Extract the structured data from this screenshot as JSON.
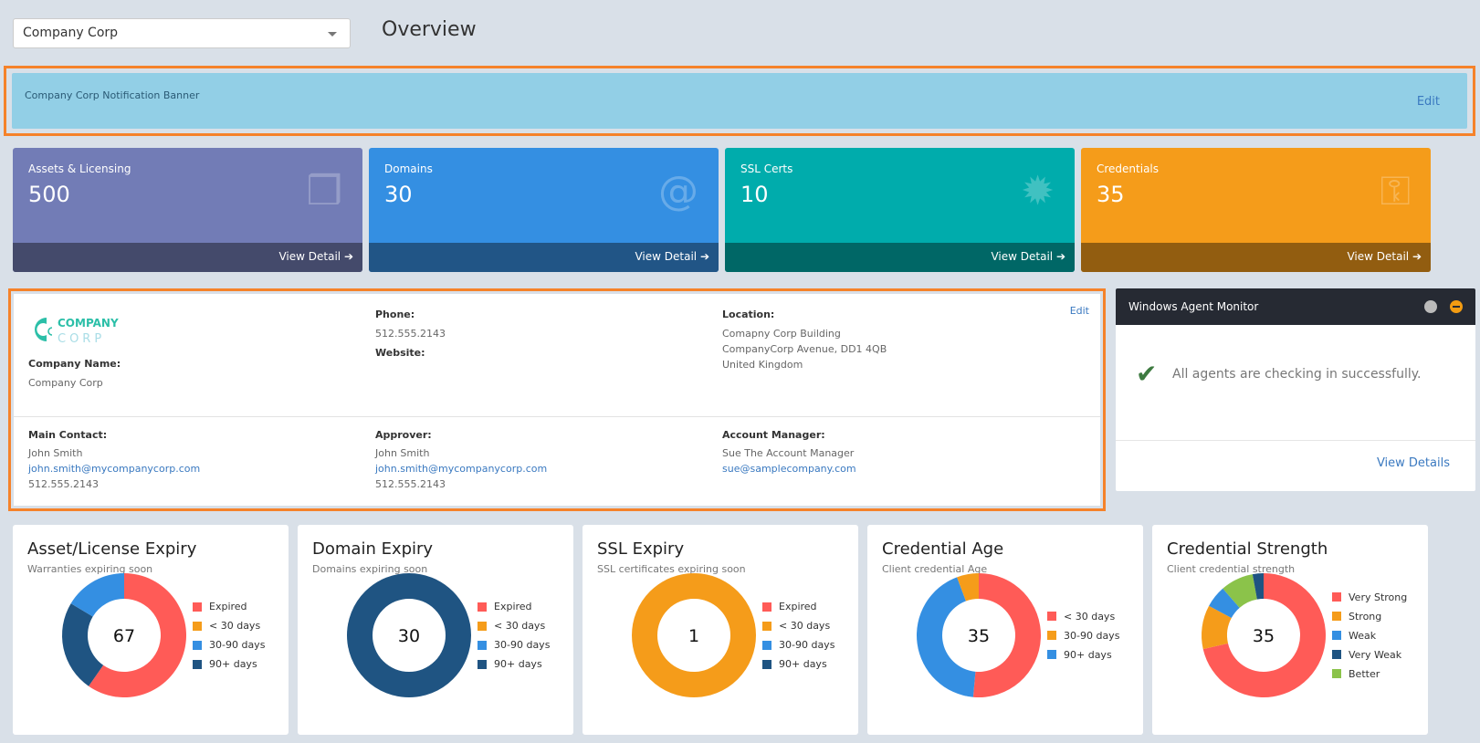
{
  "header": {
    "company_select": "Company Corp",
    "title": "Overview"
  },
  "banner": {
    "text": "Company Corp Notification Banner",
    "edit": "Edit"
  },
  "tiles": [
    {
      "label": "Assets & Licensing",
      "value": "500",
      "link": "View Detail",
      "icon": "cubes-icon",
      "color": "#727cb6",
      "foot": "#444a6b"
    },
    {
      "label": "Domains",
      "value": "30",
      "link": "View Detail",
      "icon": "at-icon",
      "color": "#348fe2",
      "foot": "#215586"
    },
    {
      "label": "SSL Certs",
      "value": "10",
      "link": "View Detail",
      "icon": "gear-icon",
      "color": "#00acac",
      "foot": "#006766"
    },
    {
      "label": "Credentials",
      "value": "35",
      "link": "View Detail",
      "icon": "key-icon",
      "color": "#f59c1a",
      "foot": "#925d10"
    }
  ],
  "info": {
    "edit": "Edit",
    "logo": "COMPANY CORP",
    "company_name_label": "Company Name:",
    "company_name": "Company Corp",
    "phone_label": "Phone:",
    "phone": "512.555.2143",
    "website_label": "Website:",
    "location_label": "Location:",
    "location": [
      "Comapny Corp Building",
      "CompanyCorp Avenue, DD1 4QB",
      "United Kingdom"
    ],
    "main_contact": {
      "label": "Main Contact:",
      "name": "John Smith",
      "email": "john.smith@mycompanycorp.com",
      "phone": "512.555.2143"
    },
    "approver": {
      "label": "Approver:",
      "name": "John Smith",
      "email": "john.smith@mycompanycorp.com",
      "phone": "512.555.2143"
    },
    "account_manager": {
      "label": "Account Manager:",
      "name": "Sue The Account Manager",
      "email": "sue@samplecompany.com"
    }
  },
  "monitor": {
    "title": "Windows Agent Monitor",
    "message": "All agents are checking in successfully.",
    "link": "View Details"
  },
  "chart_data": [
    {
      "type": "pie",
      "title": "Asset/License Expiry",
      "subtitle": "Warranties expiring soon",
      "total": "67",
      "categories": [
        "Expired",
        "< 30 days",
        "30-90 days",
        "90+ days"
      ],
      "values": [
        40,
        0,
        11,
        16
      ],
      "colors": [
        "#ff5b57",
        "#f59c1a",
        "#348fe2",
        "#1f5482"
      ],
      "draw_order": [
        0,
        1,
        3,
        2
      ]
    },
    {
      "type": "pie",
      "title": "Domain Expiry",
      "subtitle": "Domains expiring soon",
      "total": "30",
      "categories": [
        "Expired",
        "< 30 days",
        "30-90 days",
        "90+ days"
      ],
      "values": [
        0,
        0,
        0,
        30
      ],
      "colors": [
        "#ff5b57",
        "#f59c1a",
        "#348fe2",
        "#1f5482"
      ],
      "draw_order": [
        0,
        1,
        2,
        3
      ]
    },
    {
      "type": "pie",
      "title": "SSL Expiry",
      "subtitle": "SSL certificates expiring soon",
      "total": "1",
      "categories": [
        "Expired",
        "< 30 days",
        "30-90 days",
        "90+ days"
      ],
      "values": [
        0,
        1,
        0,
        0
      ],
      "colors": [
        "#ff5b57",
        "#f59c1a",
        "#348fe2",
        "#1f5482"
      ],
      "draw_order": [
        0,
        1,
        2,
        3
      ]
    },
    {
      "type": "pie",
      "title": "Credential Age",
      "subtitle": "Client credential Age",
      "total": "35",
      "categories": [
        "< 30 days",
        "30-90 days",
        "90+ days"
      ],
      "values": [
        18,
        2,
        15
      ],
      "colors": [
        "#ff5b57",
        "#f59c1a",
        "#348fe2"
      ],
      "draw_order": [
        0,
        2,
        1
      ]
    },
    {
      "type": "pie",
      "title": "Credential Strength",
      "subtitle": "Client credential strength",
      "total": "35",
      "categories": [
        "Very Strong",
        "Strong",
        "Weak",
        "Very Weak",
        "Better"
      ],
      "values": [
        25,
        4,
        2,
        1,
        3
      ],
      "colors": [
        "#ff5b57",
        "#f59c1a",
        "#348fe2",
        "#1f5482",
        "#8bc34a"
      ],
      "draw_order": [
        0,
        1,
        2,
        4,
        3
      ]
    }
  ]
}
